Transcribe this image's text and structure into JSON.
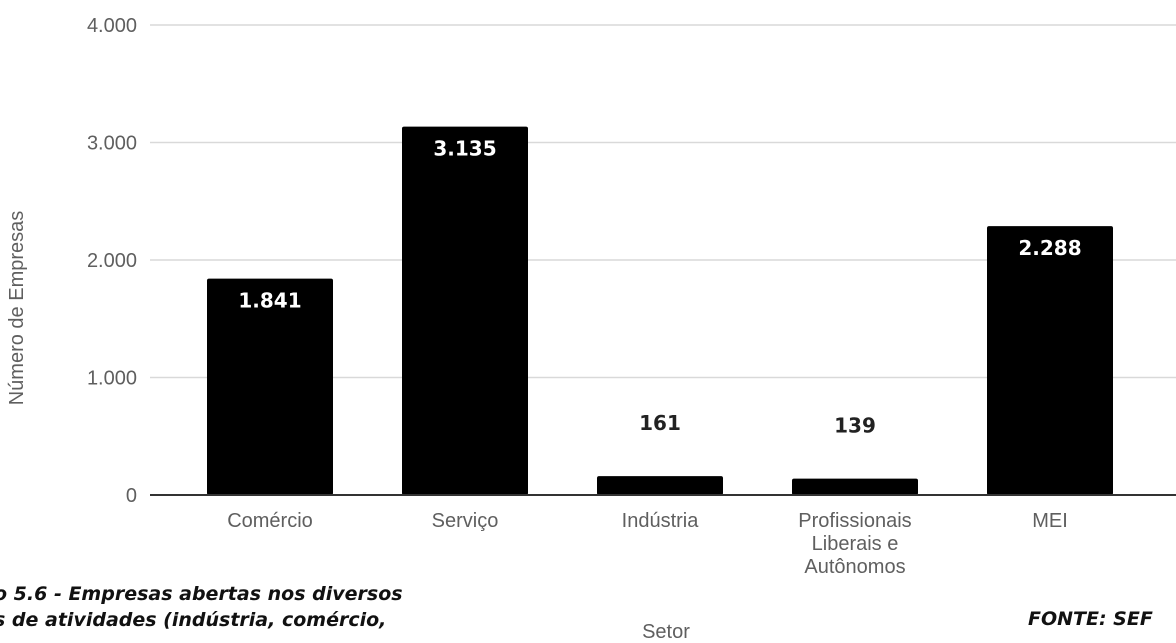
{
  "chart_data": {
    "type": "bar",
    "categories": [
      "Comércio",
      "Serviço",
      "Indústria",
      "Profissionais Liberais e Autônomos",
      "MEI"
    ],
    "category_lines": [
      [
        "Comércio"
      ],
      [
        "Serviço"
      ],
      [
        "Indústria"
      ],
      [
        "Profissionais",
        "Liberais e",
        "Autônomos"
      ],
      [
        "MEI"
      ]
    ],
    "values": [
      1841,
      3135,
      161,
      139,
      2288
    ],
    "data_labels": [
      "1.841",
      "3.135",
      "161",
      "139",
      "2.288"
    ],
    "y_ticks": [
      0,
      1000,
      2000,
      3000,
      4000
    ],
    "y_tick_labels": [
      "0",
      "1.000",
      "2.000",
      "3.000",
      "4.000"
    ],
    "ylim": [
      0,
      4000
    ],
    "xlabel": "Setor",
    "ylabel": "Número de Empresas",
    "grid": true,
    "colors": {
      "bar": "#000000",
      "grid": "#d9d9d9",
      "axis": "#333333",
      "label_inside": "#ffffff",
      "label_outside": "#222222"
    }
  },
  "caption": {
    "line1": "o 5.6 - Empresas abertas nos diversos",
    "line2": "s de atividades (indústria, comércio,"
  },
  "source": "FONTE: SEF"
}
